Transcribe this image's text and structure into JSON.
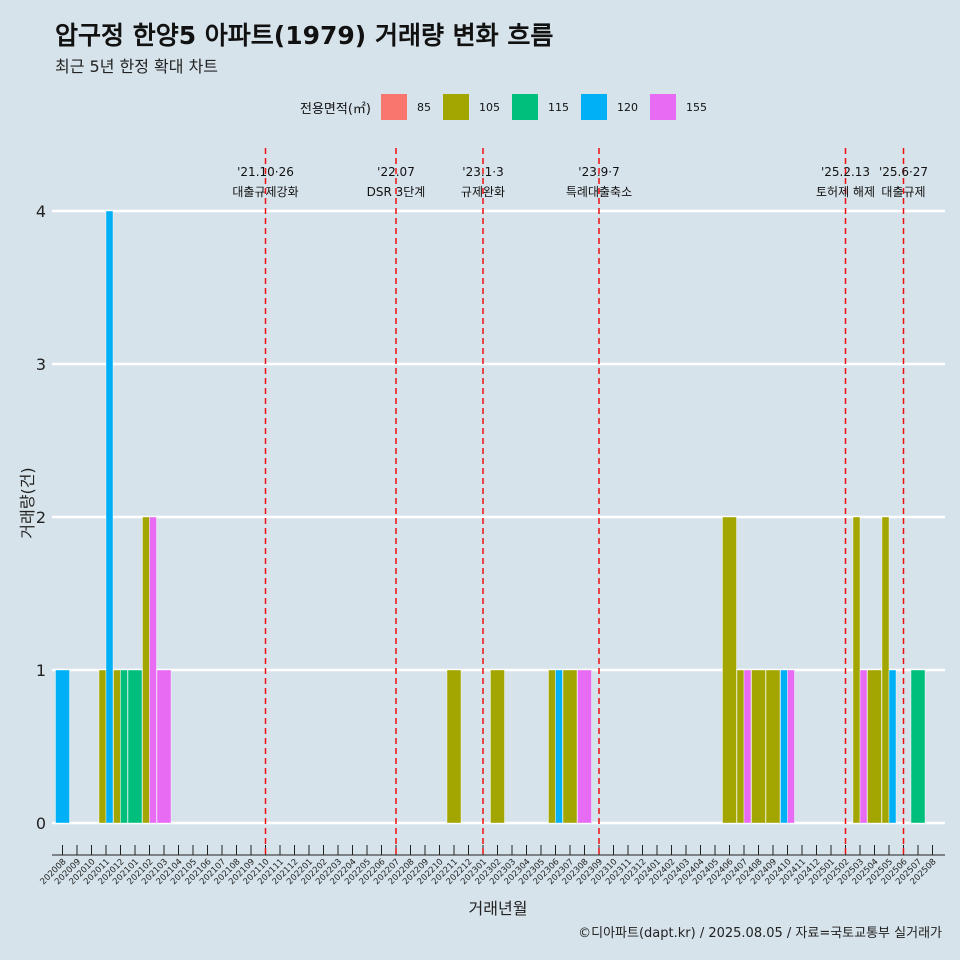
{
  "title": "압구정 한양5 아파트(1979) 거래량 변화 흐름",
  "subtitle": "최근 5년 한정 확대 차트",
  "legend": {
    "title": "전용면적(㎡)",
    "items": [
      {
        "label": "85",
        "color": "#f8766d"
      },
      {
        "label": "105",
        "color": "#a3a500"
      },
      {
        "label": "115",
        "color": "#00bf7d"
      },
      {
        "label": "120",
        "color": "#00b0f6"
      },
      {
        "label": "155",
        "color": "#e76bf3"
      }
    ]
  },
  "caption": "©디아파트(dapt.kr) / 2025.08.05 / 자료=국토교통부 실거래가",
  "chart_data": {
    "type": "bar",
    "xlabel": "거래년월",
    "ylabel": "거래량(건)",
    "ylim": [
      0,
      4
    ],
    "yticks": [
      0,
      1,
      2,
      3,
      4
    ],
    "grid": "horizontal",
    "legend_position": "top",
    "categories": [
      "202008",
      "202009",
      "202010",
      "202011",
      "202012",
      "202101",
      "202102",
      "202103",
      "202104",
      "202105",
      "202106",
      "202107",
      "202108",
      "202109",
      "202110",
      "202111",
      "202112",
      "202201",
      "202202",
      "202203",
      "202204",
      "202205",
      "202206",
      "202207",
      "202208",
      "202209",
      "202210",
      "202211",
      "202212",
      "202301",
      "202302",
      "202303",
      "202304",
      "202305",
      "202306",
      "202307",
      "202308",
      "202309",
      "202310",
      "202311",
      "202312",
      "202401",
      "202402",
      "202403",
      "202404",
      "202405",
      "202406",
      "202407",
      "202408",
      "202409",
      "202410",
      "202411",
      "202412",
      "202501",
      "202502",
      "202503",
      "202504",
      "202505",
      "202506",
      "202507",
      "202508"
    ],
    "series": [
      {
        "name": "85",
        "values": [
          0,
          0,
          0,
          0,
          0,
          0,
          0,
          0,
          0,
          0,
          0,
          0,
          0,
          0,
          0,
          0,
          0,
          0,
          0,
          0,
          0,
          0,
          0,
          0,
          0,
          0,
          0,
          0,
          0,
          0,
          0,
          0,
          0,
          0,
          0,
          0,
          0,
          0,
          0,
          0,
          0,
          0,
          0,
          0,
          0,
          0,
          0,
          0,
          0,
          0,
          0,
          0,
          0,
          0,
          0,
          0,
          0,
          0,
          0,
          0,
          0
        ]
      },
      {
        "name": "105",
        "values": [
          0,
          0,
          0,
          1,
          1,
          0,
          2,
          0,
          0,
          0,
          0,
          0,
          0,
          0,
          0,
          0,
          0,
          0,
          0,
          0,
          0,
          0,
          0,
          0,
          0,
          0,
          0,
          1,
          0,
          0,
          1,
          0,
          0,
          0,
          1,
          1,
          0,
          0,
          0,
          0,
          0,
          0,
          0,
          0,
          0,
          0,
          2,
          1,
          1,
          1,
          0,
          0,
          0,
          0,
          0,
          2,
          1,
          2,
          0,
          0,
          0
        ]
      },
      {
        "name": "115",
        "values": [
          0,
          0,
          0,
          0,
          1,
          1,
          0,
          0,
          0,
          0,
          0,
          0,
          0,
          0,
          0,
          0,
          0,
          0,
          0,
          0,
          0,
          0,
          0,
          0,
          0,
          0,
          0,
          0,
          0,
          0,
          0,
          0,
          0,
          0,
          0,
          0,
          0,
          0,
          0,
          0,
          0,
          0,
          0,
          0,
          0,
          0,
          0,
          0,
          0,
          0,
          0,
          0,
          0,
          0,
          0,
          0,
          0,
          0,
          0,
          1,
          0
        ]
      },
      {
        "name": "120",
        "values": [
          1,
          0,
          0,
          4,
          0,
          0,
          0,
          0,
          0,
          0,
          0,
          0,
          0,
          0,
          0,
          0,
          0,
          0,
          0,
          0,
          0,
          0,
          0,
          0,
          0,
          0,
          0,
          0,
          0,
          0,
          0,
          0,
          0,
          0,
          1,
          0,
          0,
          0,
          0,
          0,
          0,
          0,
          0,
          0,
          0,
          0,
          0,
          0,
          0,
          0,
          1,
          0,
          0,
          0,
          0,
          0,
          0,
          1,
          0,
          0,
          0
        ]
      },
      {
        "name": "155",
        "values": [
          0,
          0,
          0,
          0,
          0,
          0,
          2,
          1,
          0,
          0,
          0,
          0,
          0,
          0,
          0,
          0,
          0,
          0,
          0,
          0,
          0,
          0,
          0,
          0,
          0,
          0,
          0,
          0,
          0,
          0,
          0,
          0,
          0,
          0,
          0,
          0,
          1,
          0,
          0,
          0,
          0,
          0,
          0,
          0,
          0,
          0,
          0,
          1,
          0,
          0,
          1,
          0,
          0,
          0,
          0,
          1,
          0,
          0,
          0,
          0,
          0
        ]
      }
    ],
    "annotations": [
      {
        "x": "202110",
        "date": "'21.10·26",
        "label": "대출규제강화"
      },
      {
        "x": "202207",
        "date": "'22.07",
        "label": "DSR 3단계"
      },
      {
        "x": "202301",
        "date": "'23.1·3",
        "label": "규제완화"
      },
      {
        "x": "202309",
        "date": "'23.9·7",
        "label": "특례대출축소"
      },
      {
        "x": "202502",
        "date": "'25.2.13",
        "label": "토허제 해제"
      },
      {
        "x": "202506",
        "date": "'25.6·27",
        "label": "대출규제"
      }
    ]
  }
}
